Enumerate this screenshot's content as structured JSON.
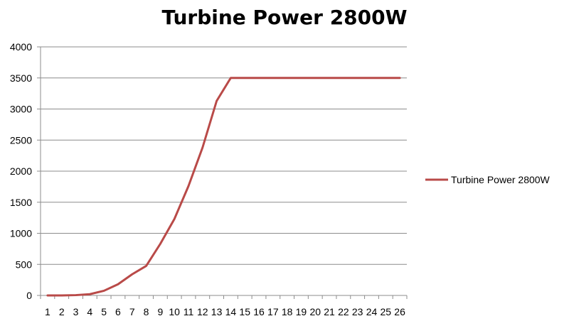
{
  "chart_data": {
    "type": "line",
    "title": "Turbine Power 2800W",
    "xlabel": "",
    "ylabel": "",
    "x": [
      1,
      2,
      3,
      4,
      5,
      6,
      7,
      8,
      9,
      10,
      11,
      12,
      13,
      14,
      15,
      16,
      17,
      18,
      19,
      20,
      21,
      22,
      23,
      24,
      25,
      26
    ],
    "x_tick_labels": [
      "1",
      "2",
      "3",
      "4",
      "5",
      "6",
      "7",
      "8",
      "9",
      "10",
      "11",
      "12",
      "13",
      "14",
      "15",
      "16",
      "17",
      "18",
      "19",
      "20",
      "21",
      "22",
      "23",
      "24",
      "25",
      "26"
    ],
    "y_tick_labels": [
      "0",
      "500",
      "1000",
      "1500",
      "2000",
      "2500",
      "3000",
      "3500",
      "4000"
    ],
    "ylim": [
      0,
      4000
    ],
    "y_ticks": [
      0,
      500,
      1000,
      1500,
      2000,
      2500,
      3000,
      3500,
      4000
    ],
    "grid": "horizontal",
    "legend_position": "right",
    "series": [
      {
        "name": "Turbine Power 2800W",
        "color": "#b94a48",
        "values": [
          0,
          0,
          5,
          20,
          75,
          180,
          340,
          475,
          830,
          1230,
          1760,
          2380,
          3130,
          3500,
          3500,
          3500,
          3500,
          3500,
          3500,
          3500,
          3500,
          3500,
          3500,
          3500,
          3500,
          3500
        ]
      }
    ]
  }
}
